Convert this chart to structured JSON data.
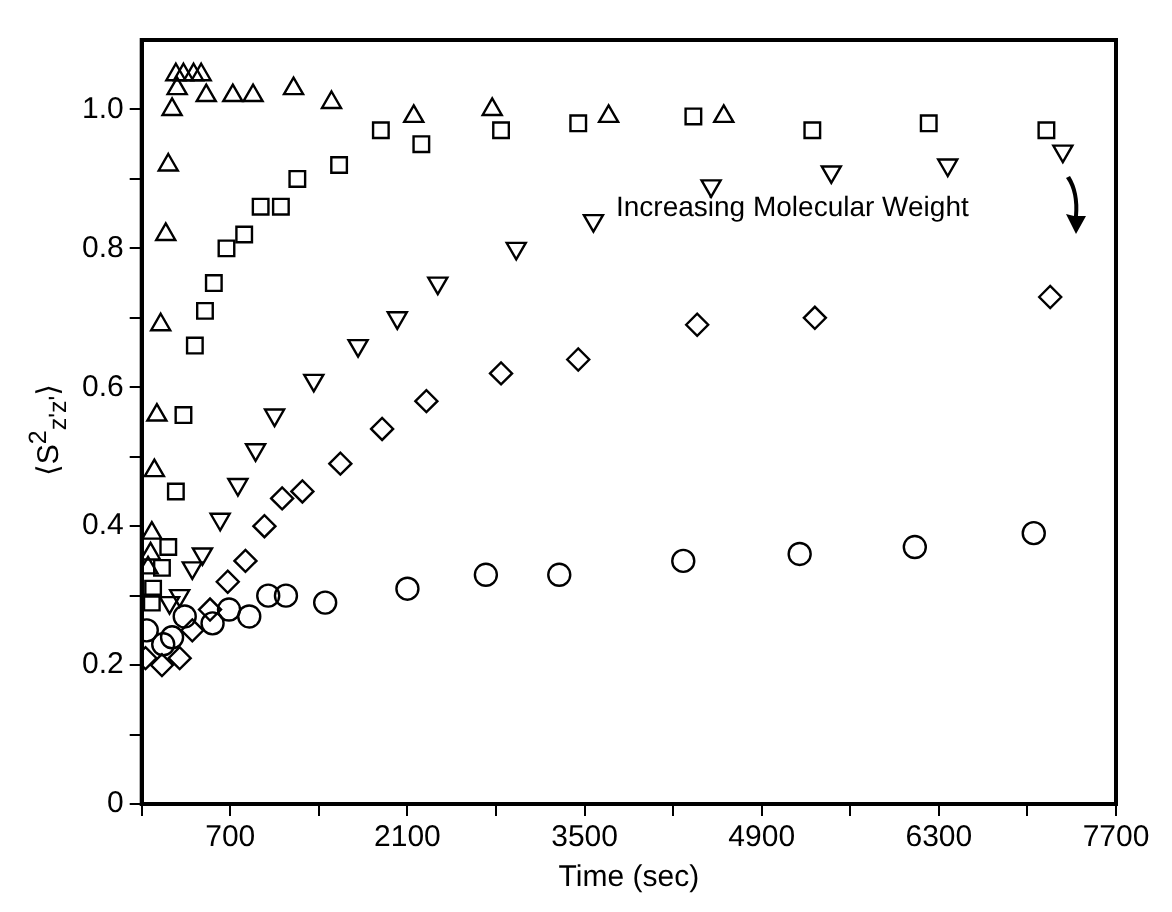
{
  "chart_data": {
    "type": "scatter",
    "xlabel": "Time (sec)",
    "ylabel": "⟨S$^{2}$$_{z'z'}$⟩",
    "annotations": [
      "Increasing Molecular Weight"
    ],
    "xlim": [
      0,
      7700
    ],
    "xticks": [
      {
        "value": 0,
        "label": null
      },
      700,
      {
        "value": 1400,
        "label": null
      },
      2100,
      {
        "value": 2800,
        "label": null
      },
      3500,
      {
        "value": 4200,
        "label": null
      },
      4900,
      {
        "value": 5600,
        "label": null
      },
      6300,
      {
        "value": 7000,
        "label": null
      },
      7700
    ],
    "ylim": [
      0,
      1.1
    ],
    "yticks": [
      0,
      {
        "value": 0.1,
        "label": null
      },
      0.2,
      {
        "value": 0.3,
        "label": null
      },
      0.4,
      {
        "value": 0.5,
        "label": null
      },
      0.6,
      {
        "value": 0.7,
        "label": null
      },
      0.8,
      {
        "value": 0.9,
        "label": null
      },
      {
        "value": 1,
        "label": "1.0"
      }
    ],
    "grid": false,
    "legend": false,
    "series": [
      {
        "color": "#000000",
        "marker": "circle",
        "x": [
          40,
          170,
          240,
          340,
          560,
          690,
          850,
          1000,
          1140,
          1450,
          2100,
          2720,
          3300,
          4280,
          5200,
          6110,
          7050
        ],
        "values": [
          0.25,
          0.23,
          0.24,
          0.27,
          0.26,
          0.28,
          0.27,
          0.3,
          0.3,
          0.29,
          0.31,
          0.33,
          0.33,
          0.35,
          0.36,
          0.37,
          0.39
        ]
      },
      {
        "color": "#000000",
        "marker": "diamond",
        "x": [
          30,
          160,
          300,
          400,
          540,
          680,
          820,
          970,
          1110,
          1270,
          1570,
          1900,
          2250,
          2840,
          3450,
          4390,
          5320,
          7180
        ],
        "values": [
          0.21,
          0.2,
          0.21,
          0.25,
          0.28,
          0.32,
          0.35,
          0.4,
          0.44,
          0.45,
          0.49,
          0.54,
          0.58,
          0.62,
          0.64,
          0.69,
          0.7,
          0.73
        ]
      },
      {
        "color": "#000000",
        "marker": "triangle-down",
        "x": [
          220,
          300,
          400,
          480,
          620,
          760,
          900,
          1050,
          1360,
          1710,
          2020,
          2340,
          2960,
          3570,
          4500,
          5450,
          6370,
          7280
        ],
        "values": [
          0.29,
          0.3,
          0.34,
          0.36,
          0.41,
          0.46,
          0.51,
          0.56,
          0.61,
          0.66,
          0.7,
          0.75,
          0.8,
          0.84,
          0.89,
          0.91,
          0.92,
          0.94
        ]
      },
      {
        "color": "#000000",
        "marker": "square",
        "x": [
          80,
          90,
          160,
          210,
          270,
          330,
          420,
          500,
          570,
          670,
          810,
          940,
          1100,
          1230,
          1560,
          1890,
          2210,
          2840,
          3450,
          4360,
          5300,
          6220,
          7150
        ],
        "values": [
          0.29,
          0.31,
          0.34,
          0.37,
          0.45,
          0.56,
          0.66,
          0.71,
          0.75,
          0.8,
          0.82,
          0.86,
          0.86,
          0.9,
          0.92,
          0.97,
          0.95,
          0.97,
          0.98,
          0.99,
          0.97,
          0.98,
          0.97
        ]
      },
      {
        "color": "#000000",
        "marker": "triangle",
        "x": [
          50,
          70,
          80,
          100,
          120,
          150,
          190,
          210,
          240,
          270,
          280,
          330,
          410,
          470,
          510,
          720,
          880,
          1200,
          1500,
          2150,
          2770,
          3690,
          4600
        ],
        "values": [
          0.34,
          0.36,
          0.39,
          0.48,
          0.56,
          0.69,
          0.82,
          0.92,
          1.0,
          1.05,
          1.03,
          1.05,
          1.05,
          1.05,
          1.02,
          1.02,
          1.02,
          1.03,
          1.01,
          0.99,
          1.0,
          0.99,
          0.99
        ]
      }
    ]
  }
}
